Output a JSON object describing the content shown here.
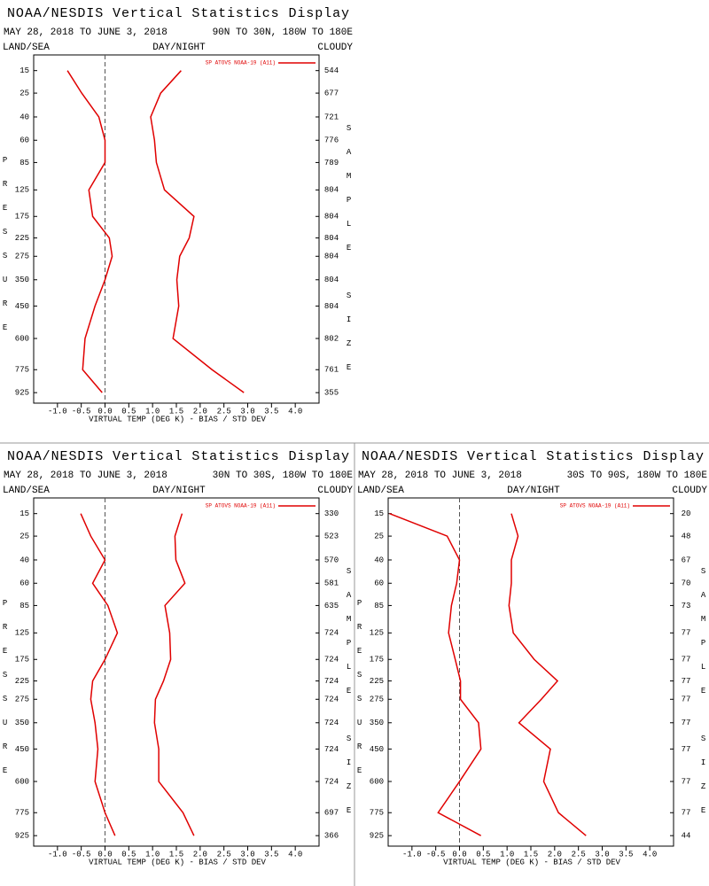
{
  "chart_data": [
    {
      "type": "line",
      "title": "NOAA/NESDIS Vertical Statistics Display",
      "subtitle": "MAY 28, 2018 TO JUNE 3, 2018",
      "region": "90N TO 30N, 180W TO 180E",
      "left_label": "LAND/SEA",
      "center_label": "DAY/NIGHT",
      "right_label": "CLOUDY",
      "ylabel": "PRESSURE",
      "y2label": "SAMPLE SIZE",
      "xlabel": "VIRTUAL TEMP (DEG K) - BIAS / STD DEV",
      "legend_label": "SP ATOVS NOAA-19 (A11)",
      "y": [
        15,
        25,
        40,
        60,
        85,
        125,
        175,
        225,
        275,
        350,
        450,
        600,
        775,
        925
      ],
      "ylim": [
        10,
        1000
      ],
      "sample_size": [
        544,
        677,
        721,
        776,
        789,
        804,
        804,
        804,
        804,
        804,
        804,
        802,
        761,
        355
      ],
      "xlim": [
        -1.5,
        4.5
      ],
      "xticks": [
        {
          "value": -1.0,
          "label": "-1.0"
        },
        {
          "value": -0.5,
          "label": "-0.5"
        },
        {
          "value": 0.0,
          "label": "0.0"
        },
        {
          "value": 0.5,
          "label": "0.5"
        },
        {
          "value": 1.0,
          "label": "1.0"
        },
        {
          "value": 1.5,
          "label": "1.5"
        },
        {
          "value": 2.0,
          "label": "2.0"
        },
        {
          "value": 2.5,
          "label": "2.5"
        },
        {
          "value": 3.0,
          "label": "3.0"
        },
        {
          "value": 3.5,
          "label": "3.5"
        },
        {
          "value": 4.0,
          "label": "4.0"
        }
      ],
      "series": [
        {
          "color": "#e00000",
          "values": [
            -0.79,
            -0.49,
            -0.13,
            0.0,
            0.0,
            -0.34,
            -0.26,
            0.09,
            0.15,
            0.0,
            -0.21,
            -0.42,
            -0.47,
            -0.06
          ]
        },
        {
          "color": "#e00000",
          "values": [
            1.6,
            1.17,
            0.96,
            1.04,
            1.08,
            1.25,
            1.87,
            1.77,
            1.57,
            1.51,
            1.55,
            1.43,
            2.25,
            2.92
          ]
        }
      ]
    },
    {
      "type": "line",
      "title": "NOAA/NESDIS Vertical Statistics Display",
      "subtitle": "MAY 28, 2018 TO JUNE 3, 2018",
      "region": "30N TO 30S, 180W TO 180E",
      "left_label": "LAND/SEA",
      "center_label": "DAY/NIGHT",
      "right_label": "CLOUDY",
      "ylabel": "PRESSURE",
      "y2label": "SAMPLE SIZE",
      "xlabel": "VIRTUAL TEMP (DEG K) - BIAS / STD DEV",
      "legend_label": "SP ATOVS NOAA-19 (A11)",
      "y": [
        15,
        25,
        40,
        60,
        85,
        125,
        175,
        225,
        275,
        350,
        450,
        600,
        775,
        925
      ],
      "ylim": [
        10,
        1000
      ],
      "sample_size": [
        330,
        523,
        570,
        581,
        635,
        724,
        724,
        724,
        724,
        724,
        724,
        724,
        697,
        366
      ],
      "xlim": [
        -1.5,
        4.5
      ],
      "xticks": [
        {
          "value": -1.0,
          "label": "-1.0"
        },
        {
          "value": -0.5,
          "label": "-0.5"
        },
        {
          "value": 0.0,
          "label": "0.0"
        },
        {
          "value": 0.5,
          "label": "0.5"
        },
        {
          "value": 1.0,
          "label": "1.0"
        },
        {
          "value": 1.5,
          "label": "1.5"
        },
        {
          "value": 2.0,
          "label": "2.0"
        },
        {
          "value": 2.5,
          "label": "2.5"
        },
        {
          "value": 3.0,
          "label": "3.0"
        },
        {
          "value": 3.5,
          "label": "3.5"
        },
        {
          "value": 4.0,
          "label": "4.0"
        }
      ],
      "series": [
        {
          "color": "#e00000",
          "values": [
            -0.51,
            -0.3,
            0.0,
            -0.26,
            0.06,
            0.26,
            0.0,
            -0.26,
            -0.3,
            -0.21,
            -0.15,
            -0.21,
            0.0,
            0.21
          ]
        },
        {
          "color": "#e00000",
          "values": [
            1.62,
            1.47,
            1.49,
            1.68,
            1.26,
            1.36,
            1.38,
            1.23,
            1.06,
            1.04,
            1.13,
            1.13,
            1.64,
            1.87
          ]
        }
      ]
    },
    {
      "type": "line",
      "title": "NOAA/NESDIS Vertical Statistics Display",
      "subtitle": "MAY 28, 2018 TO JUNE 3, 2018",
      "region": "30S TO 90S, 180W TO 180E",
      "left_label": "LAND/SEA",
      "center_label": "DAY/NIGHT",
      "right_label": "CLOUDY",
      "ylabel": "PRESSURE",
      "y2label": "SAMPLE SIZE",
      "xlabel": "VIRTUAL TEMP (DEG K) - BIAS / STD DEV",
      "legend_label": "SP ATOVS NOAA-19 (A11)",
      "y": [
        15,
        25,
        40,
        60,
        85,
        125,
        175,
        225,
        275,
        350,
        450,
        600,
        775,
        925
      ],
      "ylim": [
        10,
        1000
      ],
      "sample_size": [
        20,
        48,
        67,
        70,
        73,
        77,
        77,
        77,
        77,
        77,
        77,
        77,
        77,
        44
      ],
      "xlim": [
        -1.5,
        4.5
      ],
      "xticks": [
        {
          "value": -1.0,
          "label": "-1.0"
        },
        {
          "value": -0.5,
          "label": "-0.5"
        },
        {
          "value": 0.0,
          "label": "0.0"
        },
        {
          "value": 0.5,
          "label": "0.5"
        },
        {
          "value": 1.0,
          "label": "1.0"
        },
        {
          "value": 1.5,
          "label": "1.5"
        },
        {
          "value": 2.0,
          "label": "2.0"
        },
        {
          "value": 2.5,
          "label": "2.5"
        },
        {
          "value": 3.0,
          "label": "3.0"
        },
        {
          "value": 3.5,
          "label": "3.5"
        },
        {
          "value": 4.0,
          "label": "4.0"
        }
      ],
      "series": [
        {
          "color": "#e00000",
          "values": [
            -1.47,
            -0.26,
            0.0,
            -0.06,
            -0.17,
            -0.23,
            -0.09,
            0.02,
            0.02,
            0.4,
            0.45,
            0.0,
            -0.45,
            0.45
          ]
        },
        {
          "color": "#e00000",
          "values": [
            1.09,
            1.23,
            1.09,
            1.09,
            1.04,
            1.13,
            1.57,
            2.06,
            1.72,
            1.25,
            1.91,
            1.77,
            2.08,
            2.66
          ]
        }
      ]
    }
  ]
}
